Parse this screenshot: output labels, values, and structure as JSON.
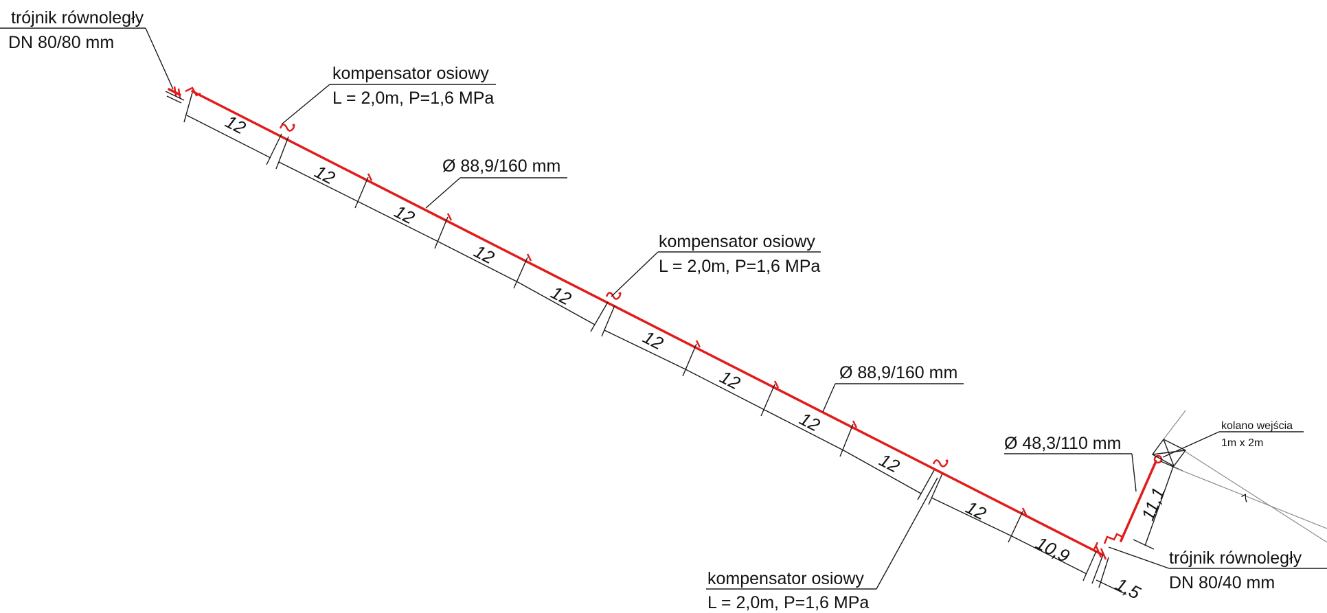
{
  "labels": {
    "tee_top_line1": "trójnik równoległy",
    "tee_top_line2": "DN 80/80 mm",
    "comp1_line1": "kompensator osiowy",
    "comp1_line2": "L = 2,0m, P=1,6 MPa",
    "pipe1": "Ø 88,9/160 mm",
    "comp2_line1": "kompensator osiowy",
    "comp2_line2": "L = 2,0m, P=1,6 MPa",
    "pipe2": "Ø 88,9/160 mm",
    "pipe3": "Ø 48,3/110 mm",
    "elbow_line1": "kolano wejścia",
    "elbow_line2": "1m x 2m",
    "tee_bottom_line1": "trójnik równoległy",
    "tee_bottom_line2": "DN 80/40 mm",
    "comp3_line1": "kompensator osiowy",
    "comp3_line2": "L = 2,0m, P=1,6 MPa",
    "slope_mark": "7"
  },
  "dimensions": {
    "d1": "12",
    "d2": "12",
    "d3": "12",
    "d4": "12",
    "d5": "12",
    "d6": "12",
    "d7": "12",
    "d8": "12",
    "d9": "12",
    "d10": "12",
    "d11": "10,9",
    "d12": "1,5",
    "d13": "11,1"
  },
  "colors": {
    "pipe": "#e21b1b",
    "line": "#1a1a1a",
    "grey": "#8a8a8a"
  }
}
